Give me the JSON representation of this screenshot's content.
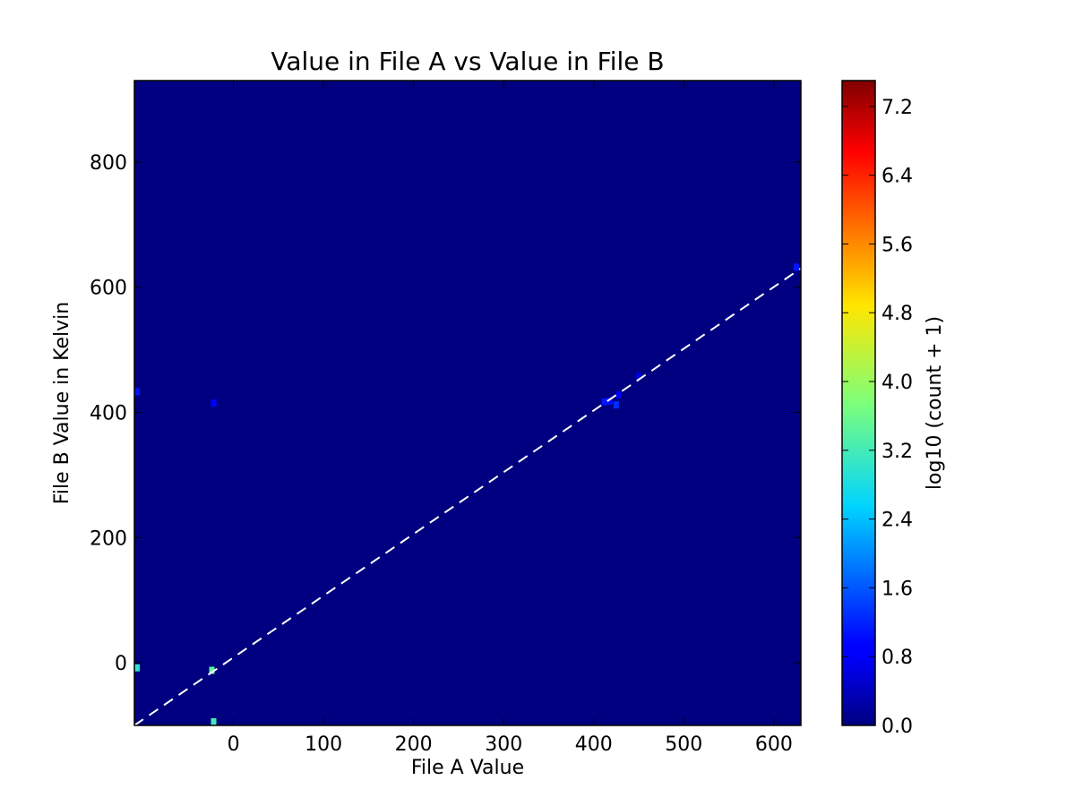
{
  "chart_data": {
    "type": "heatmap",
    "title": "Value in File A vs Value in File B",
    "xlabel": "File A Value",
    "ylabel": "File B Value in Kelvin",
    "xlim": [
      -110,
      630
    ],
    "ylim": [
      -100,
      930
    ],
    "x_ticks": [
      0,
      100,
      200,
      300,
      400,
      500,
      600
    ],
    "y_ticks": [
      0,
      200,
      400,
      600,
      800
    ],
    "background_value": 0.0,
    "reference_line": {
      "style": "dashed",
      "color": "#ffffff",
      "x": [
        -110,
        630
      ],
      "y": [
        -100,
        630
      ]
    },
    "colorbar": {
      "label": "log10 (count + 1)",
      "min": 0.0,
      "max": 7.5,
      "ticks": [
        "0.0",
        "0.8",
        "1.6",
        "2.4",
        "3.2",
        "4.0",
        "4.8",
        "5.6",
        "6.4",
        "7.2"
      ],
      "colormap": "jet"
    },
    "cells": [
      {
        "x": -108,
        "y": 433,
        "value": 1.0
      },
      {
        "x": -22,
        "y": 415,
        "value": 0.8
      },
      {
        "x": -108,
        "y": -8,
        "value": 3.0
      },
      {
        "x": -24,
        "y": -12,
        "value": 3.4
      },
      {
        "x": -22,
        "y": -98,
        "value": 3.2
      },
      {
        "x": 412,
        "y": 417,
        "value": 1.0
      },
      {
        "x": 418,
        "y": 418,
        "value": 0.9
      },
      {
        "x": 425,
        "y": 412,
        "value": 1.2
      },
      {
        "x": 428,
        "y": 428,
        "value": 0.8
      },
      {
        "x": 450,
        "y": 458,
        "value": 0.6
      },
      {
        "x": 625,
        "y": 632,
        "value": 1.0
      }
    ],
    "grid": false,
    "legend": "none"
  }
}
